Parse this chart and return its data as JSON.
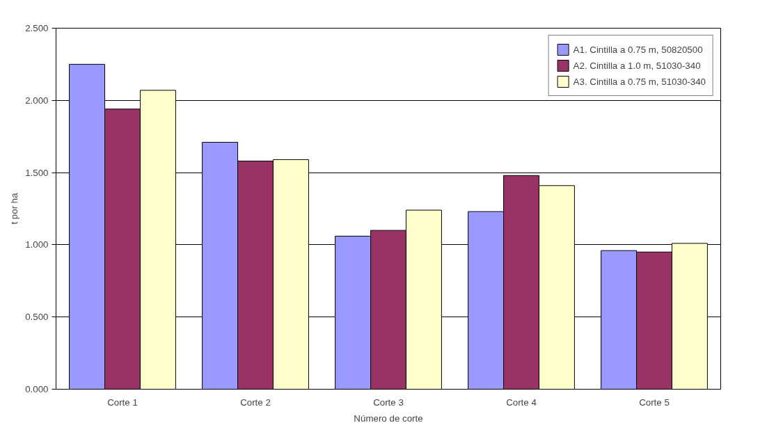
{
  "chart_data": {
    "type": "bar",
    "xlabel": "Número de corte",
    "ylabel": "t por ha",
    "categories": [
      "Corte 1",
      "Corte 2",
      "Corte 3",
      "Corte 4",
      "Corte 5"
    ],
    "series": [
      {
        "name": "A1. Cintilla a 0.75 m, 50820500",
        "color": "#9999ff",
        "values": [
          2.25,
          1.71,
          1.06,
          1.23,
          0.96
        ]
      },
      {
        "name": "A2. Cintilla a 1.0 m, 51030-340",
        "color": "#993366",
        "values": [
          1.94,
          1.58,
          1.1,
          1.48,
          0.95
        ]
      },
      {
        "name": "A3. Cintilla a 0.75 m, 51030-340",
        "color": "#ffffcc",
        "values": [
          2.07,
          1.59,
          1.24,
          1.41,
          1.01
        ]
      }
    ],
    "ylim": [
      0,
      2.5
    ],
    "yticks": [
      {
        "value": 0,
        "label": "0.000"
      },
      {
        "value": 0.5,
        "label": "0.500"
      },
      {
        "value": 1,
        "label": "1.000"
      },
      {
        "value": 1.5,
        "label": "1.500"
      },
      {
        "value": 2,
        "label": "2.000"
      },
      {
        "value": 2.5,
        "label": "2.500"
      }
    ],
    "grid": "y",
    "legend": "top right"
  }
}
